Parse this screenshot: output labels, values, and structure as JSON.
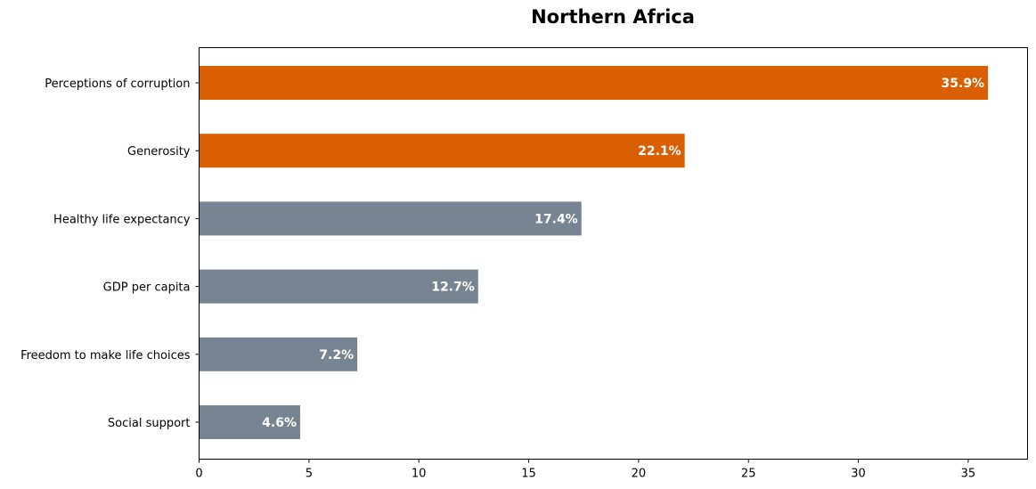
{
  "chart_data": {
    "type": "bar",
    "orientation": "horizontal",
    "title": "Northern Africa",
    "xlabel": "",
    "ylabel": "",
    "categories": [
      "Social support",
      "Freedom to make life choices",
      "GDP per capita",
      "Healthy life expectancy",
      "Generosity",
      "Perceptions of corruption"
    ],
    "values": [
      4.6,
      7.2,
      12.7,
      17.4,
      22.1,
      35.9
    ],
    "data_labels": [
      "4.6%",
      "7.2%",
      "12.7%",
      "17.4%",
      "22.1%",
      "35.9%"
    ],
    "bar_colors": [
      "#778491",
      "#778491",
      "#778491",
      "#778491",
      "#d95f02",
      "#d95f02"
    ],
    "xlim": [
      0,
      37.7
    ],
    "xticks": [
      0,
      5,
      10,
      15,
      20,
      25,
      30,
      35
    ],
    "grid": false,
    "legend": "none"
  }
}
